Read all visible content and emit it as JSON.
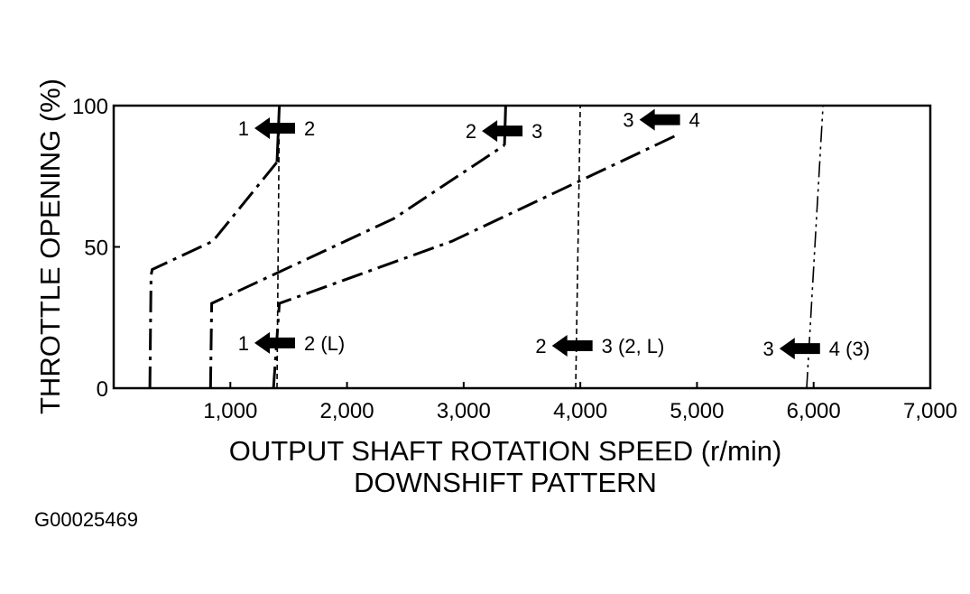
{
  "chart_data": {
    "type": "line",
    "title": "",
    "xlabel": "OUTPUT SHAFT ROTATION SPEED (r/min)",
    "subtitle": "DOWNSHIFT PATTERN",
    "ylabel": "THROTTLE OPENING (%)",
    "figure_id": "G00025469",
    "xlim": [
      0,
      7000
    ],
    "ylim": [
      0,
      100
    ],
    "x_ticks": [
      {
        "value": 1000,
        "label": "1,000"
      },
      {
        "value": 2000,
        "label": "2,000"
      },
      {
        "value": 3000,
        "label": "3,000"
      },
      {
        "value": 4000,
        "label": "4,000"
      },
      {
        "value": 5000,
        "label": "5,000"
      },
      {
        "value": 6000,
        "label": "6,000"
      },
      {
        "value": 7000,
        "label": "7,000"
      }
    ],
    "y_ticks": [
      {
        "value": 0,
        "label": "0"
      },
      {
        "value": 50,
        "label": "50"
      },
      {
        "value": 100,
        "label": "100"
      }
    ],
    "grid": false,
    "series": [
      {
        "style": "dash-dot",
        "points": [
          [
            310,
            0
          ],
          [
            320,
            40
          ],
          [
            330,
            42
          ],
          [
            850,
            52
          ],
          [
            1400,
            80
          ]
        ]
      },
      {
        "style": "solid",
        "points": [
          [
            1400,
            80
          ],
          [
            1420,
            100
          ]
        ]
      },
      {
        "style": "dash-dot",
        "points": [
          [
            830,
            0
          ],
          [
            840,
            30
          ],
          [
            2400,
            60
          ],
          [
            3350,
            86
          ]
        ]
      },
      {
        "style": "solid",
        "points": [
          [
            3350,
            86
          ],
          [
            3360,
            100
          ]
        ]
      },
      {
        "style": "dash-dot",
        "points": [
          [
            1370,
            0
          ],
          [
            1420,
            30
          ],
          [
            2900,
            52
          ],
          [
            4850,
            90
          ]
        ]
      },
      {
        "style": "dashed",
        "points": [
          [
            1400,
            0
          ],
          [
            1420,
            100
          ]
        ]
      },
      {
        "style": "dashed",
        "points": [
          [
            3960,
            0
          ],
          [
            4000,
            100
          ]
        ]
      },
      {
        "style": "dash-dot-dot",
        "points": [
          [
            5940,
            0
          ],
          [
            6080,
            100
          ]
        ]
      }
    ],
    "shift_markers": [
      {
        "from": "1",
        "to": "2",
        "x": 1400,
        "y": 92
      },
      {
        "from": "2",
        "to": "3",
        "x": 3350,
        "y": 91
      },
      {
        "from": "3",
        "to": "4",
        "x": 4700,
        "y": 95
      },
      {
        "from": "1",
        "to": "2 (L)",
        "x": 1400,
        "y": 16
      },
      {
        "from": "2",
        "to": "3 (2, L)",
        "x": 3950,
        "y": 15
      },
      {
        "from": "3",
        "to": "4 (3)",
        "x": 5900,
        "y": 14
      }
    ]
  }
}
